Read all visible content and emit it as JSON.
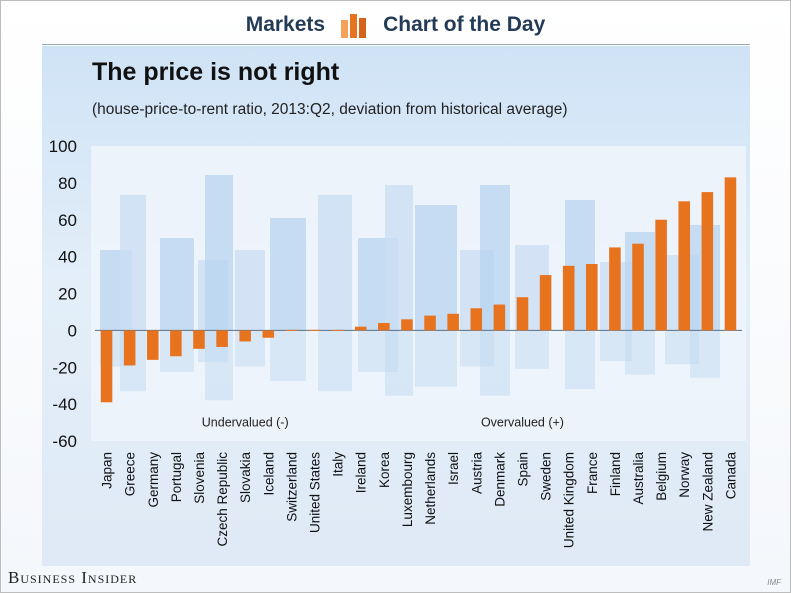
{
  "header": {
    "left_label": "Markets",
    "right_label": "Chart of the Day",
    "logo_icon": "bar-chart-logo-icon",
    "accent": "#e8731f",
    "text_color": "#243b57"
  },
  "chart_data": {
    "type": "bar",
    "title": "The price is not right",
    "subtitle": "(house-price-to-rent ratio, 2013:Q2, deviation from historical average)",
    "xlabel": "",
    "ylabel": "",
    "ylim": [
      -60,
      100
    ],
    "yticks": [
      100,
      80,
      60,
      40,
      20,
      0,
      -20,
      -40,
      -60
    ],
    "grid": false,
    "bar_color": "#e8731f",
    "categories": [
      "Japan",
      "Greece",
      "Germany",
      "Portugal",
      "Slovenia",
      "Czech Republic",
      "Slovakia",
      "Iceland",
      "Switzerland",
      "United States",
      "Italy",
      "Ireland",
      "Korea",
      "Luxembourg",
      "Netherlands",
      "Israel",
      "Austria",
      "Denmark",
      "Spain",
      "Sweden",
      "United Kingdom",
      "France",
      "Finland",
      "Australia",
      "Belgium",
      "Norway",
      "New Zealand",
      "Canada"
    ],
    "values": [
      -39,
      -19,
      -16,
      -14,
      -10,
      -9,
      -6,
      -4,
      0,
      0,
      0,
      2,
      4,
      6,
      8,
      9,
      12,
      14,
      18,
      30,
      35,
      36,
      45,
      47,
      60,
      70,
      75,
      83
    ],
    "annotations": [
      {
        "text": "Undervalued (-)",
        "x_category": "Slovakia",
        "y": -50
      },
      {
        "text": "Overvalued (+)",
        "x_category": "Spain",
        "y": -50
      }
    ]
  },
  "footer": {
    "brand": "Business Insider",
    "credit": "IMF"
  }
}
